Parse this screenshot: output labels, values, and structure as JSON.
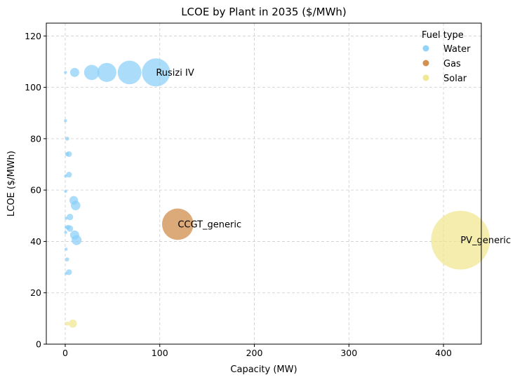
{
  "chart_data": {
    "type": "scatter",
    "title": "LCOE by Plant in 2035 ($/MWh)",
    "xlabel": "Capacity (MW)",
    "ylabel": "LCOE ($/MWh)",
    "xlim": [
      -20,
      440
    ],
    "ylim": [
      0,
      125
    ],
    "xticks": [
      0,
      100,
      200,
      300,
      400
    ],
    "yticks": [
      0,
      20,
      40,
      60,
      80,
      100,
      120
    ],
    "grid": true,
    "legend": {
      "title": "Fuel type",
      "position": "top-right",
      "entries": [
        "Water",
        "Gas",
        "Solar"
      ]
    },
    "series": [
      {
        "name": "Water",
        "color": "#87cefa",
        "points": [
          {
            "x": 0.3,
            "y": 105.8
          },
          {
            "x": 10,
            "y": 105.8
          },
          {
            "x": 28,
            "y": 105.8
          },
          {
            "x": 44,
            "y": 105.8
          },
          {
            "x": 68,
            "y": 105.8
          },
          {
            "x": 96,
            "y": 105.8
          },
          {
            "x": 0.3,
            "y": 87
          },
          {
            "x": 2,
            "y": 80
          },
          {
            "x": 2,
            "y": 74
          },
          {
            "x": 4,
            "y": 74
          },
          {
            "x": 4,
            "y": 66
          },
          {
            "x": 0.5,
            "y": 65.5
          },
          {
            "x": 0.5,
            "y": 59.5
          },
          {
            "x": 9,
            "y": 56
          },
          {
            "x": 11,
            "y": 54
          },
          {
            "x": 5,
            "y": 49.5
          },
          {
            "x": 1,
            "y": 49
          },
          {
            "x": 1,
            "y": 45.5
          },
          {
            "x": 3,
            "y": 45.5
          },
          {
            "x": 5,
            "y": 45
          },
          {
            "x": 10,
            "y": 42.5
          },
          {
            "x": 12,
            "y": 40.5
          },
          {
            "x": 0.5,
            "y": 43.5
          },
          {
            "x": 1,
            "y": 37
          },
          {
            "x": 2,
            "y": 33
          },
          {
            "x": 4,
            "y": 28
          },
          {
            "x": 1,
            "y": 27.5
          }
        ]
      },
      {
        "name": "Gas",
        "color": "#cd853f",
        "points": [
          {
            "x": 119,
            "y": 46.7
          }
        ]
      },
      {
        "name": "Solar",
        "color": "#f0e68c",
        "points": [
          {
            "x": 2,
            "y": 8
          },
          {
            "x": 8,
            "y": 8
          },
          {
            "x": 418,
            "y": 40.5
          }
        ]
      }
    ],
    "annotations": [
      {
        "text": "Rusizi IV",
        "x": 96,
        "y": 105.8
      },
      {
        "text": "CCGT_generic",
        "x": 119,
        "y": 46.7
      },
      {
        "text": "PV_generic",
        "x": 418,
        "y": 40.5
      }
    ]
  }
}
